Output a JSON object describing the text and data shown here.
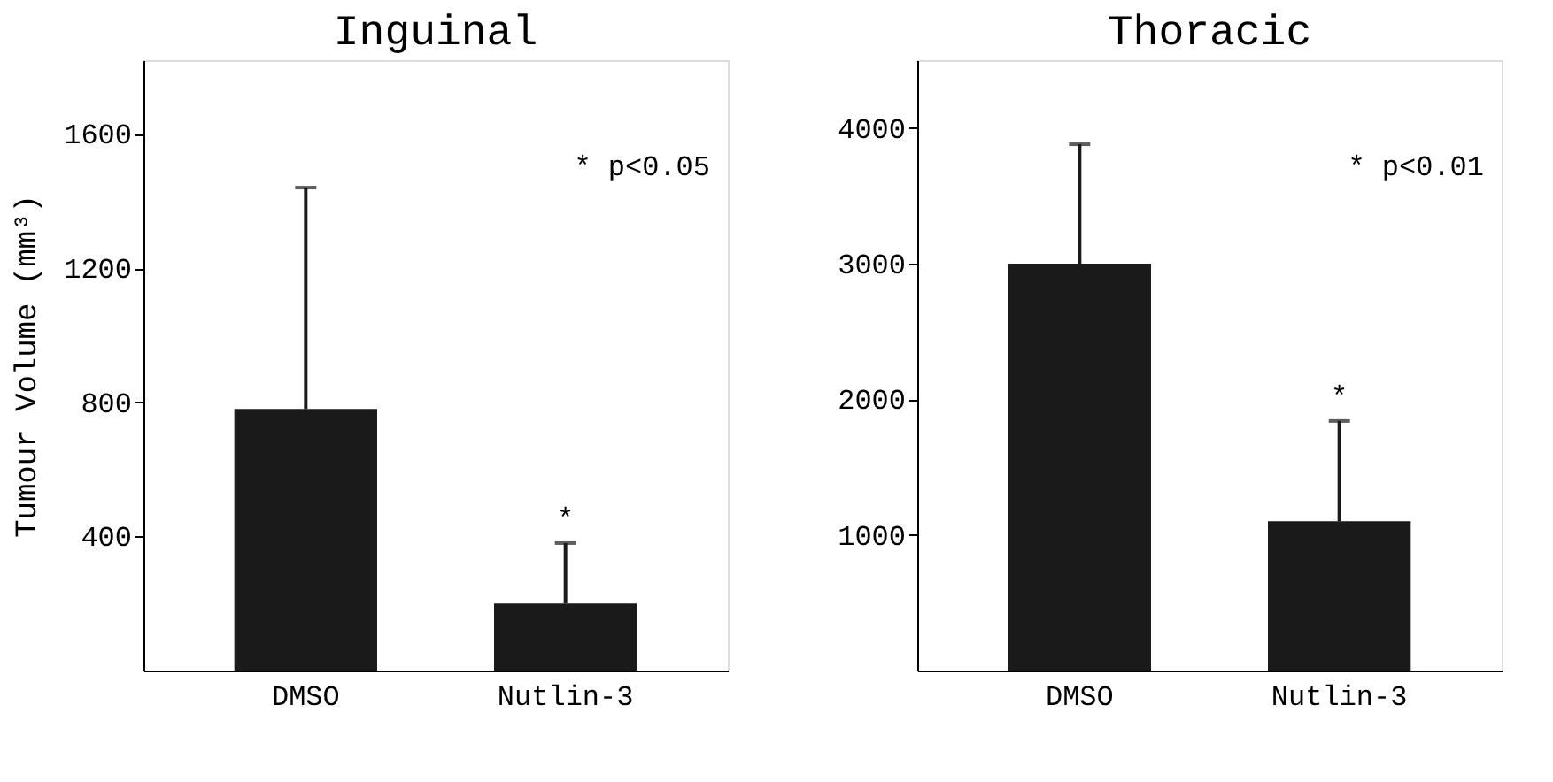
{
  "chart_data": [
    {
      "type": "bar",
      "title": "Inguinal",
      "ylabel": "Tumour Volume (mm³)",
      "categories": [
        "DMSO",
        "Nutlin-3"
      ],
      "values": [
        780,
        200
      ],
      "color": "#1a1a1a",
      "errors": [
        [
          780,
          1440
        ],
        [
          200,
          380
        ]
      ],
      "ylim": [
        0,
        1820
      ],
      "yticks": [
        400,
        800,
        1200,
        1600
      ],
      "grid": false,
      "annotations": [
        {
          "text": "*",
          "x": "Nutlin-3",
          "y": 380
        },
        "* p<0.05"
      ]
    },
    {
      "type": "bar",
      "title": "Thoracic",
      "categories": [
        "DMSO",
        "Nutlin-3"
      ],
      "values": [
        3000,
        1100
      ],
      "color": "#1a1a1a",
      "errors": [
        [
          3000,
          3880
        ],
        [
          1100,
          1840
        ]
      ],
      "ylim": [
        0,
        4500
      ],
      "yticks": [
        1000,
        2000,
        3000,
        4000
      ],
      "grid": false,
      "annotations": [
        {
          "text": "*",
          "x": "Nutlin-3",
          "y": 1840
        },
        "* p<0.01"
      ]
    }
  ]
}
